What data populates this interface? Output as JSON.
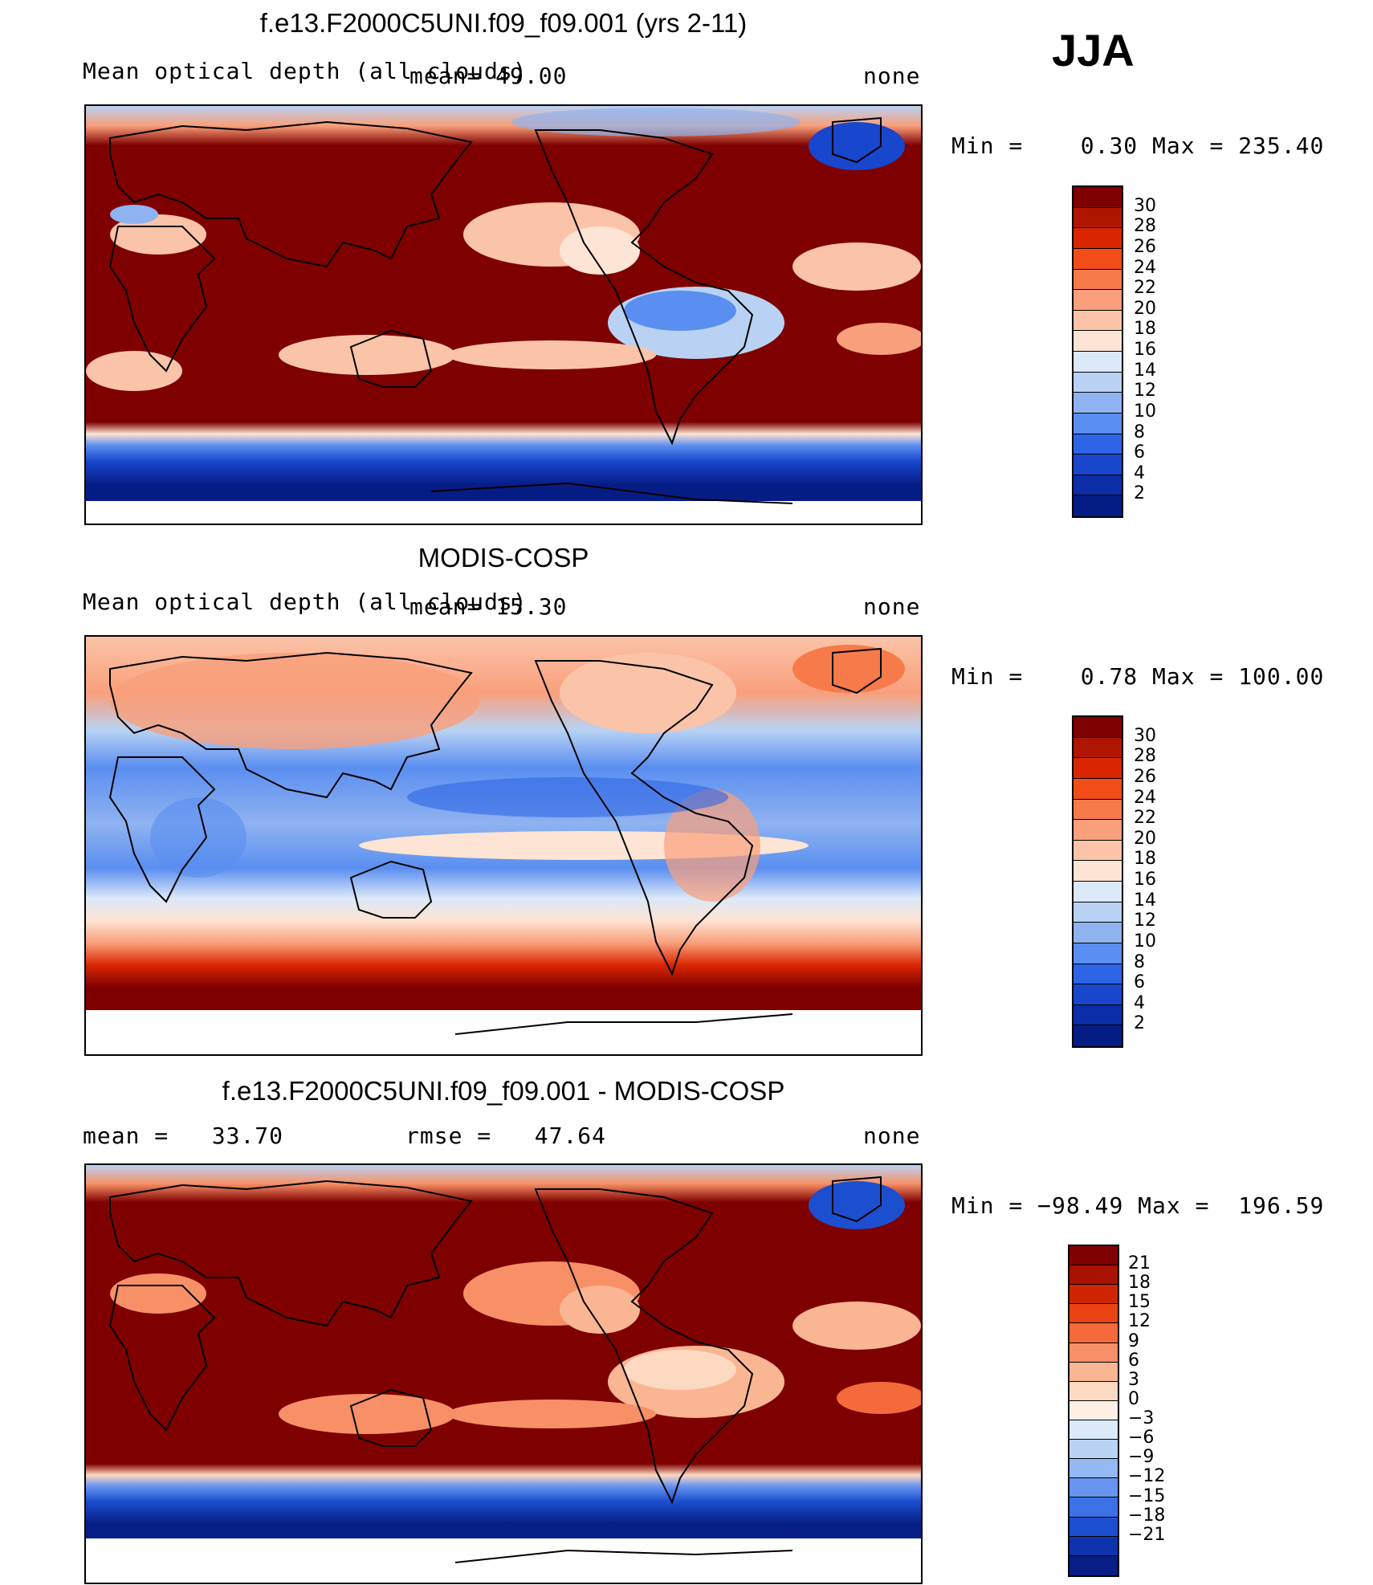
{
  "season": "JJA",
  "palette_temp": [
    "#7f0000",
    "#b01500",
    "#d92600",
    "#f24d19",
    "#f77a4a",
    "#f99f7b",
    "#fbc4a8",
    "#fde4d4",
    "#dbe8f8",
    "#b9d2f3",
    "#8fb3f0",
    "#5a8ef0",
    "#2e65e6",
    "#1846cc",
    "#0c2da8",
    "#061c85"
  ],
  "palette_diff": [
    "#7f0000",
    "#a81200",
    "#cf2400",
    "#ea4313",
    "#f56a3a",
    "#f79066",
    "#fab593",
    "#fdd9c2",
    "#fff0e6",
    "#dce9f9",
    "#bad3f4",
    "#94b8f1",
    "#6694ef",
    "#3b70e6",
    "#1c4fd0",
    "#0d33ad",
    "#061e86"
  ],
  "panels": [
    {
      "title": "f.e13.F2000C5UNI.f09_f09.001 (yrs 2-11)",
      "variable": "Mean optical depth (all clouds)",
      "stat_label": "mean",
      "stat_value": "49.00",
      "units": "none",
      "min_label": "Min",
      "min_value": "0.30",
      "max_label": "Max",
      "max_value": "235.40",
      "colorbar_ticks": [
        "30",
        "28",
        "26",
        "24",
        "22",
        "20",
        "18",
        "16",
        "14",
        "12",
        "10",
        "8",
        "6",
        "4",
        "2"
      ]
    },
    {
      "title": "MODIS-COSP",
      "variable": "Mean optical depth (all clouds)",
      "stat_label": "mean",
      "stat_value": "15.30",
      "units": "none",
      "min_label": "Min",
      "min_value": "0.78",
      "max_label": "Max",
      "max_value": "100.00",
      "colorbar_ticks": [
        "30",
        "28",
        "26",
        "24",
        "22",
        "20",
        "18",
        "16",
        "14",
        "12",
        "10",
        "8",
        "6",
        "4",
        "2"
      ]
    },
    {
      "title": "f.e13.F2000C5UNI.f09_f09.001 - MODIS-COSP",
      "mean_label": "mean",
      "mean_value": "33.70",
      "rmse_label": "rmse",
      "rmse_value": "47.64",
      "units": "none",
      "min_label": "Min",
      "min_value": "−98.49",
      "max_label": "Max",
      "max_value": "196.59",
      "colorbar_ticks": [
        "21",
        "18",
        "15",
        "12",
        "9",
        "6",
        "3",
        "0",
        "−3",
        "−6",
        "−9",
        "−12",
        "−15",
        "−18",
        "−21"
      ]
    }
  ]
}
